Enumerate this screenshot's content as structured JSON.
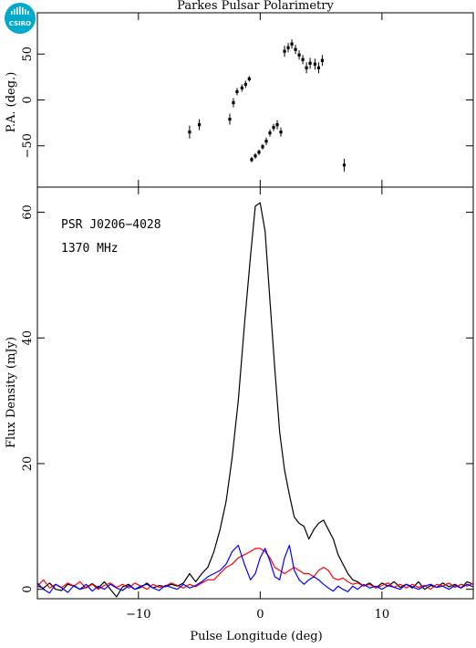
{
  "title": "Parkes Pulsar Polarimetry",
  "logo": {
    "text": "CSIRO",
    "color": "#00a9ce"
  },
  "chart_data": [
    {
      "type": "scatter",
      "panel": "top",
      "ylabel": "P.A. (deg.)",
      "xlim": [
        -18.3,
        17.5
      ],
      "ylim": [
        -95,
        95
      ],
      "yticks": [
        -50,
        0,
        50
      ],
      "xticks": [
        -10,
        0,
        10
      ],
      "error_bars": true,
      "points": [
        {
          "x": -5.8,
          "y": -35,
          "err": 7
        },
        {
          "x": -5.0,
          "y": -27,
          "err": 6
        },
        {
          "x": -2.5,
          "y": -21,
          "err": 6
        },
        {
          "x": -2.2,
          "y": -3,
          "err": 5
        },
        {
          "x": -1.9,
          "y": 9,
          "err": 4
        },
        {
          "x": -1.5,
          "y": 13,
          "err": 4
        },
        {
          "x": -1.2,
          "y": 17,
          "err": 4
        },
        {
          "x": -0.9,
          "y": 23,
          "err": 3
        },
        {
          "x": -0.7,
          "y": -65,
          "err": 3
        },
        {
          "x": -0.4,
          "y": -61,
          "err": 3
        },
        {
          "x": -0.1,
          "y": -57,
          "err": 3
        },
        {
          "x": 0.2,
          "y": -51,
          "err": 3
        },
        {
          "x": 0.5,
          "y": -45,
          "err": 4
        },
        {
          "x": 0.8,
          "y": -36,
          "err": 4
        },
        {
          "x": 1.1,
          "y": -30,
          "err": 4
        },
        {
          "x": 1.4,
          "y": -27,
          "err": 5
        },
        {
          "x": 1.7,
          "y": -35,
          "err": 5
        },
        {
          "x": 2.0,
          "y": 53,
          "err": 6
        },
        {
          "x": 2.3,
          "y": 57,
          "err": 5
        },
        {
          "x": 2.6,
          "y": 61,
          "err": 5
        },
        {
          "x": 2.9,
          "y": 55,
          "err": 5
        },
        {
          "x": 3.2,
          "y": 49,
          "err": 5
        },
        {
          "x": 3.5,
          "y": 44,
          "err": 5
        },
        {
          "x": 3.8,
          "y": 35,
          "err": 6
        },
        {
          "x": 4.1,
          "y": 40,
          "err": 6
        },
        {
          "x": 4.5,
          "y": 39,
          "err": 6
        },
        {
          "x": 4.8,
          "y": 35,
          "err": 6
        },
        {
          "x": 5.1,
          "y": 43,
          "err": 6
        },
        {
          "x": 6.9,
          "y": -71,
          "err": 7
        }
      ]
    },
    {
      "type": "line",
      "panel": "bottom",
      "xlabel": "Pulse Longitude (deg)",
      "ylabel": "Flux Density (mJy)",
      "xlim": [
        -18.3,
        17.5
      ],
      "ylim": [
        -1.5,
        64
      ],
      "yticks": [
        0,
        20,
        40,
        60
      ],
      "xticks": [
        -10,
        0,
        10
      ],
      "annotations": [
        "PSR J0206−4028",
        "1370 MHz"
      ],
      "series": [
        {
          "color": "#000000",
          "x": [
            -18.3,
            -17.8,
            -17.3,
            -16.8,
            -16.3,
            -15.8,
            -15.3,
            -14.8,
            -14.3,
            -13.8,
            -13.3,
            -12.8,
            -12.3,
            -11.8,
            -11.3,
            -10.8,
            -10.3,
            -9.8,
            -9.3,
            -8.8,
            -8.3,
            -7.8,
            -7.3,
            -6.8,
            -6.3,
            -5.8,
            -5.3,
            -4.8,
            -4.3,
            -3.8,
            -3.3,
            -2.8,
            -2.3,
            -1.8,
            -1.3,
            -0.8,
            -0.4,
            0.0,
            0.4,
            0.8,
            1.2,
            1.6,
            2.0,
            2.4,
            2.8,
            3.2,
            3.6,
            4.0,
            4.4,
            4.8,
            5.2,
            5.6,
            6.0,
            6.4,
            6.8,
            7.2,
            7.6,
            8.0,
            8.5,
            9.0,
            9.5,
            10.0,
            10.5,
            11.0,
            11.5,
            12.0,
            12.5,
            13.0,
            13.5,
            14.0,
            14.5,
            15.0,
            15.5,
            16.0,
            16.5,
            17.0,
            17.5
          ],
          "y": [
            0.5,
            0.2,
            1.0,
            0.0,
            -0.2,
            0.8,
            0.5,
            0.0,
            0.3,
            0.9,
            0.2,
            1.2,
            0.0,
            -1.2,
            0.4,
            0.8,
            0.0,
            0.3,
            1.0,
            0.2,
            0.6,
            0.4,
            0.8,
            0.5,
            1.0,
            2.5,
            1.2,
            2.5,
            3.5,
            6.0,
            9.5,
            14.0,
            21.0,
            30.0,
            42.0,
            53.0,
            61.0,
            61.5,
            57.0,
            46.0,
            35.0,
            25.0,
            19.0,
            15.0,
            11.5,
            10.5,
            10.0,
            8.0,
            9.5,
            10.5,
            11.0,
            9.5,
            8.0,
            5.5,
            4.0,
            2.5,
            1.5,
            1.2,
            0.5,
            1.0,
            0.2,
            1.0,
            0.5,
            1.2,
            0.3,
            0.8,
            0.2,
            1.2,
            0.0,
            0.6,
            0.3,
            1.0,
            0.4,
            0.8,
            0.2,
            1.2,
            0.8
          ]
        },
        {
          "color": "#ff0000",
          "x": [
            -18.3,
            -17.8,
            -17.3,
            -16.8,
            -16.3,
            -15.8,
            -15.3,
            -14.8,
            -14.3,
            -13.8,
            -13.3,
            -12.8,
            -12.3,
            -11.8,
            -11.3,
            -10.8,
            -10.3,
            -9.8,
            -9.3,
            -8.8,
            -8.3,
            -7.8,
            -7.3,
            -6.8,
            -6.3,
            -5.8,
            -5.3,
            -4.8,
            -4.3,
            -3.8,
            -3.3,
            -2.8,
            -2.3,
            -1.8,
            -1.3,
            -0.8,
            -0.4,
            0.0,
            0.4,
            0.8,
            1.2,
            1.6,
            2.0,
            2.4,
            2.8,
            3.2,
            3.6,
            4.0,
            4.4,
            4.8,
            5.2,
            5.6,
            6.0,
            6.4,
            6.8,
            7.2,
            7.6,
            8.0,
            8.5,
            9.0,
            9.5,
            10.0,
            10.5,
            11.0,
            11.5,
            12.0,
            12.5,
            13.0,
            13.5,
            14.0,
            14.5,
            15.0,
            15.5,
            16.0,
            16.5,
            17.0,
            17.5
          ],
          "y": [
            0.5,
            1.5,
            0.2,
            0.8,
            0.3,
            1.0,
            0.5,
            1.2,
            0.2,
            0.8,
            0.0,
            0.6,
            1.0,
            0.3,
            0.8,
            0.2,
            1.0,
            0.5,
            0.0,
            0.8,
            0.3,
            0.5,
            1.0,
            0.6,
            0.2,
            0.8,
            0.4,
            1.0,
            1.5,
            1.5,
            2.5,
            3.5,
            4.0,
            5.0,
            5.5,
            6.0,
            6.5,
            6.5,
            6.0,
            5.0,
            3.5,
            3.0,
            2.5,
            3.0,
            3.5,
            3.0,
            2.5,
            2.5,
            2.0,
            3.0,
            3.5,
            3.0,
            1.8,
            1.5,
            1.8,
            1.2,
            0.8,
            1.0,
            0.5,
            0.8,
            0.2,
            0.6,
            1.0,
            0.3,
            0.8,
            0.2,
            0.8,
            0.3,
            0.6,
            0.0,
            0.8,
            0.5,
            1.0,
            0.3,
            0.8,
            0.5,
            1.0
          ]
        },
        {
          "color": "#0000ff",
          "x": [
            -18.3,
            -17.8,
            -17.3,
            -16.8,
            -16.3,
            -15.8,
            -15.3,
            -14.8,
            -14.3,
            -13.8,
            -13.3,
            -12.8,
            -12.3,
            -11.8,
            -11.3,
            -10.8,
            -10.3,
            -9.8,
            -9.3,
            -8.8,
            -8.3,
            -7.8,
            -7.3,
            -6.8,
            -6.3,
            -5.8,
            -5.3,
            -4.8,
            -4.3,
            -3.8,
            -3.3,
            -2.8,
            -2.3,
            -1.8,
            -1.3,
            -0.8,
            -0.4,
            0.0,
            0.4,
            0.8,
            1.2,
            1.6,
            2.0,
            2.4,
            2.8,
            3.2,
            3.6,
            4.0,
            4.4,
            4.8,
            5.2,
            5.6,
            6.0,
            6.4,
            6.8,
            7.2,
            7.6,
            8.0,
            8.5,
            9.0,
            9.5,
            10.0,
            10.5,
            11.0,
            11.5,
            12.0,
            12.5,
            13.0,
            13.5,
            14.0,
            14.5,
            15.0,
            15.5,
            16.0,
            16.5,
            17.0,
            17.5
          ],
          "y": [
            1.0,
            0.0,
            -0.6,
            0.8,
            0.2,
            -0.5,
            0.6,
            0.0,
            0.8,
            -0.3,
            0.5,
            0.0,
            0.8,
            0.2,
            -0.2,
            0.6,
            0.0,
            0.5,
            0.8,
            0.2,
            -0.2,
            0.6,
            0.3,
            0.0,
            0.8,
            0.2,
            0.6,
            1.2,
            2.0,
            2.5,
            3.0,
            4.0,
            6.0,
            7.0,
            4.0,
            1.5,
            2.5,
            5.0,
            6.5,
            4.5,
            2.0,
            1.5,
            5.0,
            7.0,
            3.0,
            1.5,
            0.8,
            1.5,
            2.0,
            1.5,
            0.8,
            0.2,
            -0.3,
            0.5,
            0.0,
            -0.4,
            0.5,
            0.0,
            0.8,
            0.2,
            0.5,
            0.0,
            0.6,
            0.3,
            0.0,
            0.8,
            0.4,
            0.0,
            0.5,
            0.8,
            0.3,
            0.5,
            0.0,
            0.6,
            0.2,
            0.8,
            0.4
          ]
        }
      ]
    }
  ]
}
